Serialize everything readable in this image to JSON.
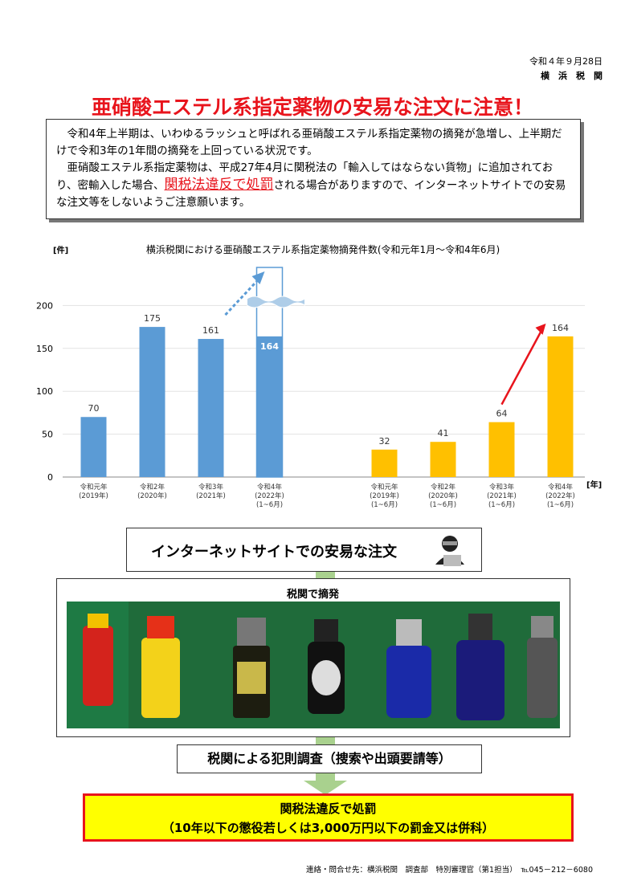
{
  "header": {
    "date": "令和４年９月28日",
    "issuer": "横　浜　税　関",
    "title": "亜硝酸エステル系指定薬物の安易な注文に注意！"
  },
  "intro": {
    "paragraph1": "令和4年上半期は、いわゆるラッシュと呼ばれる亜硝酸エステル系指定薬物の摘発が急増し、上半期だけで令和3年の1年間の摘発を上回っている状況です。",
    "paragraph2_before": "亜硝酸エステル系指定薬物は、平成27年4月に関税法の「輸入してはならない貨物」に追加されており、密輸入した場合、",
    "paragraph2_emphasis": "関税法違反で処罰",
    "paragraph2_after": "される場合がありますので、インターネットサイトでの安易な注文等をしないようご注意願います。"
  },
  "chart_data": {
    "type": "bar",
    "title": "横浜税関における亜硝酸エステル系指定薬物摘発件数(令和元年1月～令和4年6月)",
    "y_unit": "[件]",
    "x_unit": "[年]",
    "ylim": [
      0,
      250
    ],
    "yticks": [
      0,
      50,
      100,
      150,
      200
    ],
    "grid": true,
    "groups": [
      {
        "color": "#5b9bd5",
        "categories": [
          "令和元年\n(2019年)",
          "令和2年\n(2020年)",
          "令和3年\n(2021年)",
          "令和4年\n(2022年)\n(1~6月)"
        ],
        "values": [
          70,
          175,
          161,
          164
        ]
      },
      {
        "color": "#ffc000",
        "categories": [
          "令和元年\n(2019年)\n(1~6月)",
          "令和2年\n(2020年)\n(1~6月)",
          "令和3年\n(2021年)\n(1~6月)",
          "令和4年\n(2022年)\n(1~6月)"
        ],
        "values": [
          32,
          41,
          64,
          164
        ]
      }
    ]
  },
  "flow": {
    "step1": "インターネットサイトでの安易な注文",
    "step2": "税関で摘発",
    "step3": "税関による犯則調査（捜索や出頭要請等）",
    "penalty_line1": "関税法違反で処罰",
    "penalty_line2": "（10年以下の懲役若しくは3,000万円以下の罰金又は併科）"
  },
  "footer": {
    "contact": "連絡・問合せ先：横浜税関　調査部　特別審理官（第1担当）　℡045－212－6080"
  }
}
